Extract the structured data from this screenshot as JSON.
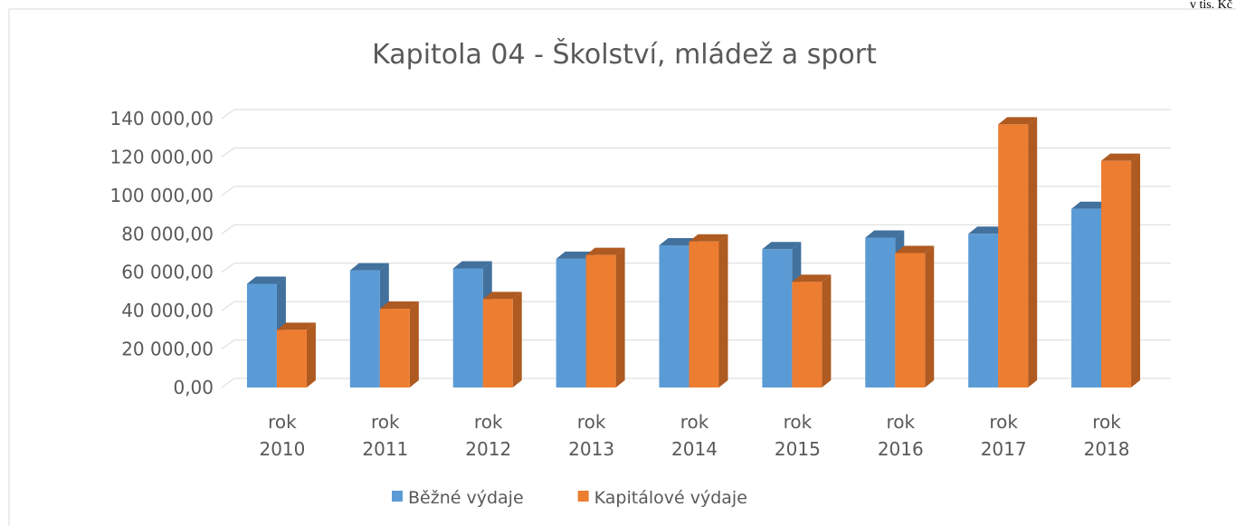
{
  "chart_data": {
    "type": "bar3d",
    "title": "Kapitola 04 - Školství, mládež a sport",
    "unit_note": "v tis. Kč",
    "categories": [
      "rok 2010",
      "rok 2011",
      "rok 2012",
      "rok 2013",
      "rok 2014",
      "rok 2015",
      "rok 2016",
      "rok 2017",
      "rok 2018"
    ],
    "series": [
      {
        "name": "Běžné výdaje",
        "color": "#5b9bd5",
        "side_color": "#41719c",
        "values": [
          54000,
          61000,
          62000,
          67000,
          74000,
          72000,
          78000,
          80000,
          93000
        ]
      },
      {
        "name": "Kapitálové výdaje",
        "color": "#ed7d31",
        "side_color": "#ae5a21",
        "values": [
          30000,
          41000,
          46000,
          69000,
          76000,
          55000,
          70000,
          137000,
          118000
        ]
      }
    ],
    "ylim": [
      0,
      140000
    ],
    "yticks": [
      {
        "value": 0,
        "label": "0,00"
      },
      {
        "value": 20000,
        "label": "20 000,00"
      },
      {
        "value": 40000,
        "label": "40 000,00"
      },
      {
        "value": 60000,
        "label": "60 000,00"
      },
      {
        "value": 80000,
        "label": "80 000,00"
      },
      {
        "value": 100000,
        "label": "100 000,00"
      },
      {
        "value": 120000,
        "label": "120 000,00"
      },
      {
        "value": 140000,
        "label": "140 000,00"
      }
    ],
    "grid": true,
    "legend": "bottom"
  }
}
